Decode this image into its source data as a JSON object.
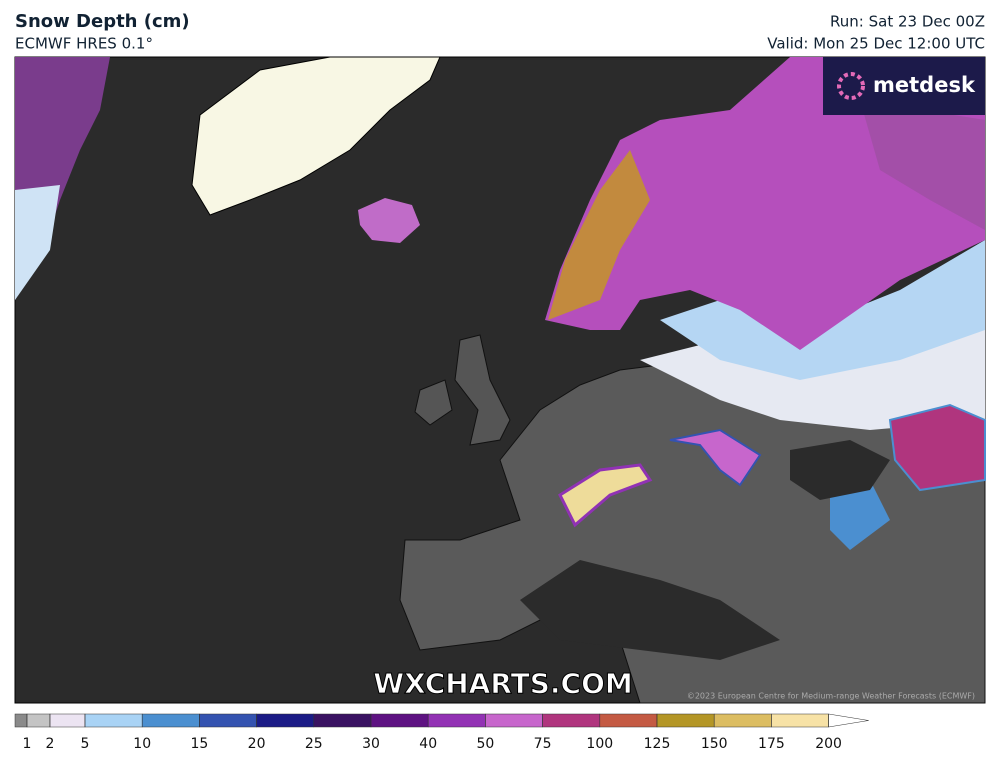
{
  "header": {
    "title": "Snow Depth (cm)",
    "subtitle": "ECMWF HRES 0.1°",
    "run": "Run: Sat 23 Dec 00Z",
    "valid": "Valid: Mon 25 Dec 12:00 UTC"
  },
  "logo": "metdesk",
  "watermark": "WXCHARTS.COM",
  "copyright": "©2023 European Centre for Medium-range Weather Forecasts (ECMWF)",
  "legend": {
    "ticks": [
      1,
      2,
      5,
      10,
      15,
      20,
      25,
      30,
      40,
      50,
      75,
      100,
      125,
      150,
      175,
      200
    ],
    "colors": [
      "#8a8a8a",
      "#c4c4c4",
      "#ece4f2",
      "#a9d3f5",
      "#4b8fd0",
      "#3453b0",
      "#1b1b86",
      "#3a1262",
      "#5e1282",
      "#9232b4",
      "#c766cc",
      "#b0357e",
      "#c45a43",
      "#b49626",
      "#dcbd62",
      "#f7e2a6",
      "#ffffff"
    ]
  }
}
